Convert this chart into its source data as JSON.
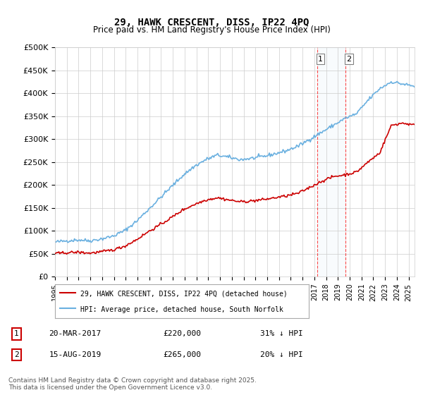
{
  "title": "29, HAWK CRESCENT, DISS, IP22 4PQ",
  "subtitle": "Price paid vs. HM Land Registry's House Price Index (HPI)",
  "ylabel_ticks": [
    "£0",
    "£50K",
    "£100K",
    "£150K",
    "£200K",
    "£250K",
    "£300K",
    "£350K",
    "£400K",
    "£450K",
    "£500K"
  ],
  "ytick_values": [
    0,
    50000,
    100000,
    150000,
    200000,
    250000,
    300000,
    350000,
    400000,
    450000,
    500000
  ],
  "hpi_color": "#6ab0e0",
  "price_color": "#cc0000",
  "background_color": "#ffffff",
  "grid_color": "#cccccc",
  "annotation1": {
    "label": "1",
    "date": "20-MAR-2017",
    "price": "£220,000",
    "note": "31% ↓ HPI",
    "x_year": 2017.22,
    "y_value": 220000
  },
  "annotation2": {
    "label": "2",
    "date": "15-AUG-2019",
    "price": "£265,000",
    "note": "20% ↓ HPI",
    "x_year": 2019.62,
    "y_value": 265000
  },
  "legend_line1": "29, HAWK CRESCENT, DISS, IP22 4PQ (detached house)",
  "legend_line2": "HPI: Average price, detached house, South Norfolk",
  "footnote": "Contains HM Land Registry data © Crown copyright and database right 2025.\nThis data is licensed under the Open Government Licence v3.0.",
  "xmin": 1995,
  "xmax": 2025.5,
  "ymin": 0,
  "ymax": 500000
}
